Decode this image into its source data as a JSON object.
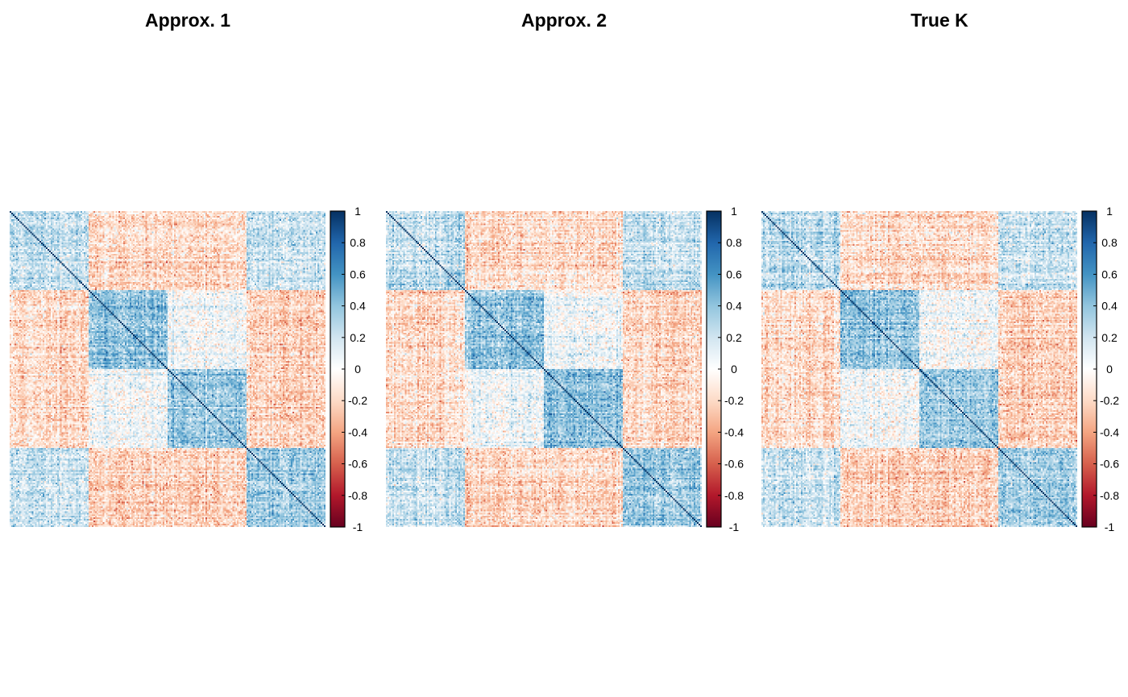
{
  "chart_data": [
    {
      "type": "heatmap",
      "title": "Approx. 1",
      "n": 200,
      "block_size": 50,
      "block_means": [
        [
          0.25,
          -0.18,
          -0.18,
          0.22
        ],
        [
          -0.18,
          0.4,
          0.05,
          -0.22
        ],
        [
          -0.18,
          0.05,
          0.38,
          -0.22
        ],
        [
          0.22,
          -0.22,
          -0.22,
          0.35
        ]
      ],
      "diagonal": 1,
      "colorbar": {
        "min": -1,
        "max": 1,
        "ticks": [
          "1",
          "0.8",
          "0.6",
          "0.4",
          "0.2",
          "0",
          "-0.2",
          "-0.4",
          "-0.6",
          "-0.8",
          "-1"
        ]
      },
      "seed": 11
    },
    {
      "type": "heatmap",
      "title": "Approx. 2",
      "n": 200,
      "block_size": 50,
      "block_means": [
        [
          0.25,
          -0.18,
          -0.18,
          0.22
        ],
        [
          -0.18,
          0.4,
          0.05,
          -0.22
        ],
        [
          -0.18,
          0.05,
          0.38,
          -0.22
        ],
        [
          0.22,
          -0.22,
          -0.22,
          0.35
        ]
      ],
      "diagonal": 1,
      "colorbar": {
        "min": -1,
        "max": 1,
        "ticks": [
          "1",
          "0.8",
          "0.6",
          "0.4",
          "0.2",
          "0",
          "-0.2",
          "-0.4",
          "-0.6",
          "-0.8",
          "-1"
        ]
      },
      "seed": 23
    },
    {
      "type": "heatmap",
      "title": "True K",
      "n": 200,
      "block_size": 50,
      "block_means": [
        [
          0.25,
          -0.18,
          -0.18,
          0.22
        ],
        [
          -0.18,
          0.4,
          0.05,
          -0.22
        ],
        [
          -0.18,
          0.05,
          0.38,
          -0.22
        ],
        [
          0.22,
          -0.22,
          -0.22,
          0.35
        ]
      ],
      "diagonal": 1,
      "colorbar": {
        "min": -1,
        "max": 1,
        "ticks": [
          "1",
          "0.8",
          "0.6",
          "0.4",
          "0.2",
          "0",
          "-0.2",
          "-0.4",
          "-0.6",
          "-0.8",
          "-1"
        ]
      },
      "seed": 37
    }
  ],
  "palette": [
    "#67001F",
    "#B2182B",
    "#D6604D",
    "#F4A582",
    "#FDDBC7",
    "#FFFFFF",
    "#D1E5F0",
    "#92C5DE",
    "#4393C3",
    "#2166AC",
    "#053061"
  ]
}
